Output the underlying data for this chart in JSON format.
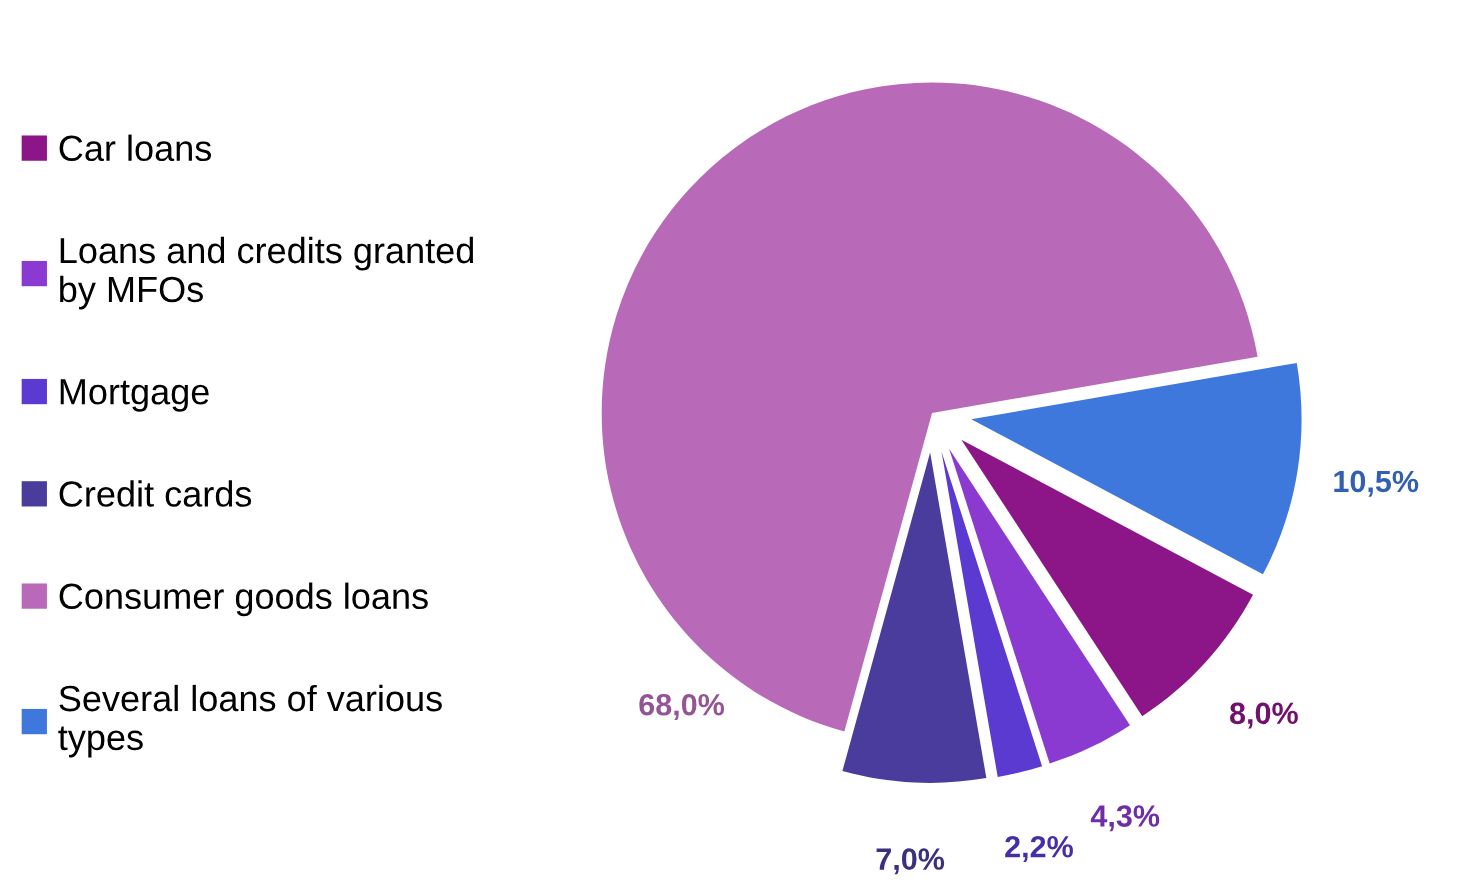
{
  "chart_data": {
    "type": "pie",
    "categories": [
      "Car loans",
      "Loans and credits granted\nby MFOs",
      "Mortgage",
      "Credit cards",
      "Consumer goods loans",
      "Several loans of various\ntypes"
    ],
    "values": [
      8.0,
      4.3,
      2.2,
      7.0,
      68.0,
      10.5
    ],
    "colors": [
      "#8c1588",
      "#8a3ad0",
      "#5a3ad0",
      "#4a3c9c",
      "#b86ab8",
      "#3f78dc"
    ],
    "value_labels": [
      "8,0%",
      "4,3%",
      "2,2%",
      "7,0%",
      "68,0%",
      "10,5%"
    ],
    "legend": "left"
  }
}
